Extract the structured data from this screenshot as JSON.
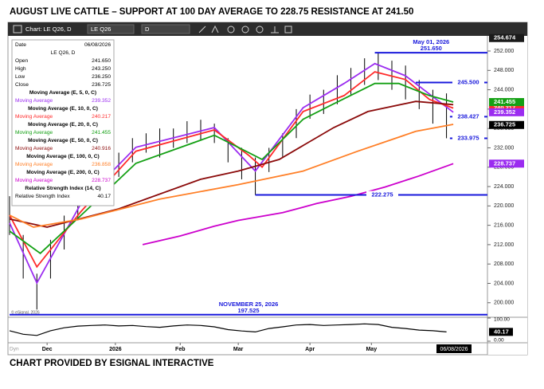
{
  "chart_data": {
    "type": "ohlc",
    "title": "AUGUST LIVE CATTLE –   SUPPORT AT 100 DAY AVERAGE TO 228.75  RESISTANCE AT 241.50",
    "footer": "CHART PROVIDED BY ESIGNAL INTERACTIVE",
    "toolbar": {
      "chart": "Chart: LE Q26, D",
      "symbol": "LE Q26",
      "interval": "D"
    },
    "copyright": "© eSignal, 2026",
    "dyn": "Dyn",
    "xlim": [
      0,
      140
    ],
    "xticks": [
      {
        "value": 11,
        "label": "Dec"
      },
      {
        "value": 31,
        "label": "2026"
      },
      {
        "value": 50,
        "label": "Feb"
      },
      {
        "value": 67,
        "label": "Mar"
      },
      {
        "value": 88,
        "label": "Apr"
      },
      {
        "value": 106,
        "label": "May"
      }
    ],
    "date_box": "06/08/2026",
    "ylim": [
      197,
      254.8
    ],
    "yticks": [
      {
        "value": 200,
        "label": "200.000"
      },
      {
        "value": 204,
        "label": "204.000"
      },
      {
        "value": 208,
        "label": "208.000"
      },
      {
        "value": 212,
        "label": "212.000"
      },
      {
        "value": 216,
        "label": "216.000"
      },
      {
        "value": 220,
        "label": "220.000"
      },
      {
        "value": 224,
        "label": "224.000"
      },
      {
        "value": 228,
        "label": "228.000"
      },
      {
        "value": 232,
        "label": "232.000"
      },
      {
        "value": 236,
        "label": "236.000"
      },
      {
        "value": 240,
        "label": "240.000"
      },
      {
        "value": 244,
        "label": "244.000"
      },
      {
        "value": 248,
        "label": "248.000"
      },
      {
        "value": 252,
        "label": "252.000"
      }
    ],
    "bars": {
      "x": [
        0,
        4,
        8,
        12,
        16,
        20,
        24,
        28,
        32,
        36,
        40,
        44,
        48,
        52,
        56,
        60,
        64,
        68,
        72,
        76,
        80,
        84,
        88,
        92,
        96,
        100,
        104,
        108,
        112,
        116,
        120,
        124,
        128
      ],
      "high": [
        222,
        214,
        206,
        213,
        218,
        222,
        226,
        229,
        231,
        234,
        235,
        236,
        236,
        237.5,
        237.8,
        237,
        234,
        232,
        230,
        232,
        235,
        240,
        243,
        244,
        247,
        248.5,
        250.5,
        251.65,
        250,
        249,
        246,
        244,
        243.25
      ],
      "low": [
        214,
        205,
        198.6,
        205,
        211,
        217,
        220,
        224,
        226,
        229,
        231,
        230,
        232,
        233,
        233.5,
        233,
        229,
        225.5,
        222.275,
        227,
        230,
        234,
        238,
        239,
        241,
        243,
        245,
        246,
        244,
        242,
        240,
        237,
        233.975
      ],
      "color": "#000000"
    },
    "series": [
      {
        "name": "Moving Average (E, 5, 0, C)",
        "legend_label": "Moving Average",
        "last_label": "239.352",
        "color": "#9b2cf0",
        "x": [
          0,
          8,
          21,
          37,
          60,
          72,
          86,
          98,
          107,
          116,
          126,
          130
        ],
        "values": [
          216.5,
          204.1,
          220.6,
          232.1,
          236.2,
          227.2,
          240.3,
          245.3,
          249.4,
          246.9,
          241.5,
          239.352
        ]
      },
      {
        "name": "Moving Average (E, 10, 0, C)",
        "legend_label": "Moving Average",
        "last_label": "240.217",
        "color": "#ff2a2a",
        "x": [
          0,
          8,
          21,
          37,
          60,
          70,
          74,
          86,
          98,
          107,
          116,
          123,
          130
        ],
        "values": [
          218.1,
          207.4,
          218.9,
          231.3,
          235.7,
          230.5,
          228,
          239.5,
          242.8,
          247.7,
          246.1,
          242,
          240.217
        ]
      },
      {
        "name": "Moving Average (E, 20, 0, C)",
        "legend_label": "Moving Average",
        "last_label": "241.455",
        "color": "#14a014",
        "x": [
          0,
          9,
          21,
          37,
          60,
          67,
          74,
          86,
          95,
          107,
          114,
          123,
          130
        ],
        "values": [
          214.8,
          210.2,
          218.1,
          228.8,
          234.6,
          232.1,
          229.6,
          237.9,
          241.1,
          245.3,
          245.3,
          242.8,
          241.455
        ]
      },
      {
        "name": "Moving Average (E, 50, 0, C)",
        "legend_label": "Moving Average",
        "last_label": "240.916",
        "color": "#8b0a0a",
        "x": [
          0,
          11,
          32,
          56,
          67,
          79,
          95,
          105,
          119,
          130
        ],
        "values": [
          217.3,
          215.6,
          219.4,
          225.5,
          227.2,
          229.6,
          236.2,
          239.5,
          241.6,
          240.916
        ]
      },
      {
        "name": "Moving Average (E, 100, 0, C)",
        "legend_label": "Moving Average",
        "last_label": "236.858",
        "color": "#ff7f27",
        "x": [
          0,
          7,
          21,
          44,
          67,
          86,
          102,
          119,
          130
        ],
        "values": [
          218.1,
          215.6,
          217.3,
          221.4,
          224.4,
          227.2,
          231.3,
          235.4,
          236.858
        ]
      },
      {
        "name": "Moving Average (E, 200, 0, C)",
        "legend_label": "Moving Average",
        "last_label": "228.737",
        "color": "#cc00cc",
        "x": [
          39,
          50,
          60,
          67,
          80,
          90,
          100,
          110,
          120,
          130
        ],
        "values": [
          212,
          213.8,
          215.8,
          217,
          218.6,
          220.5,
          222,
          223.9,
          226.2,
          228.737
        ]
      }
    ],
    "panel": {
      "date_label": "Date",
      "date": "06/08/2026",
      "symbol": "LE Q26, D",
      "rows": [
        {
          "label": "Open",
          "value": "241.650"
        },
        {
          "label": "High",
          "value": "243.250"
        },
        {
          "label": "Low",
          "value": "236.250"
        },
        {
          "label": "Close",
          "value": "236.725"
        }
      ],
      "rsi_name": "Relative Strength Index (14, C)",
      "rsi_label": "Relative Strength Index",
      "rsi_value": "40.17"
    },
    "price_boxes": [
      {
        "value": 254.674,
        "label": "254.674",
        "color": "#1a1a1a"
      },
      {
        "value": 240.217,
        "label": "240.217",
        "color": "#ff2a2a"
      },
      {
        "value": 241.455,
        "label": "241.455",
        "color": "#14a014"
      },
      {
        "value": 239.352,
        "label": "239.352",
        "color": "#9b2cf0"
      },
      {
        "value": 236.725,
        "label": "236.725",
        "color": "#000000"
      },
      {
        "value": 228.737,
        "label": "228.737",
        "color": "#9b2cf0"
      }
    ],
    "annotations": [
      {
        "value": 251.65,
        "label": "251.650",
        "x": 107,
        "date": "May 01, 2026"
      },
      {
        "value": 245.5,
        "label": "245.500",
        "x": 119
      },
      {
        "value": 238.427,
        "label": "238.427",
        "x": 129
      },
      {
        "value": 233.975,
        "label": "233.975",
        "x": 129
      },
      {
        "value": 222.275,
        "label": "222.275",
        "x": 72
      },
      {
        "value": 197.525,
        "label": "197.525",
        "x": 0,
        "date": "NOVEMBER 25, 2026"
      }
    ],
    "annotation_color": "#1a1adc",
    "rsi": {
      "ylim": [
        0,
        100
      ],
      "yticks": [
        {
          "value": 100,
          "label": "100.00"
        },
        {
          "value": 0,
          "label": "0.00"
        }
      ],
      "last_label": "40.17",
      "values": [
        45,
        30,
        25,
        45,
        58,
        65,
        68,
        70,
        66,
        68,
        63,
        60,
        66,
        70,
        68,
        62,
        50,
        44,
        40,
        55,
        62,
        70,
        72,
        68,
        70,
        72,
        75,
        72,
        60,
        55,
        48,
        45,
        40.17
      ]
    }
  }
}
